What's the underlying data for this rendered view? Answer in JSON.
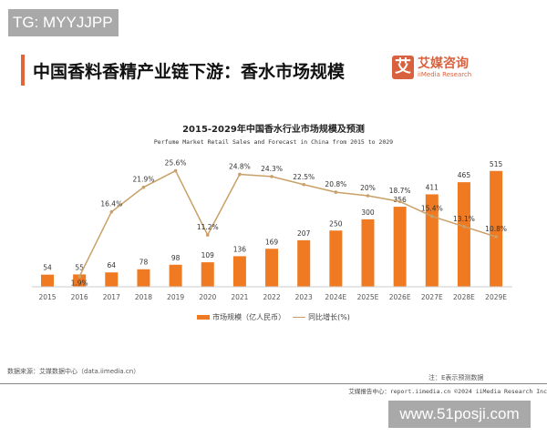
{
  "watermark_top": "TG: MYYJJPP",
  "watermark_bottom": "www.51posji.com",
  "header": {
    "title": "中国香料香精产业链下游：香水市场规模",
    "logo_mark": "艾",
    "logo_cn": "艾媒咨询",
    "logo_en": "iiMedia Research"
  },
  "source": "数据来源：艾媒数据中心（data.iimedia.cn）",
  "note": "注：E表示预测数据",
  "footer": "艾媒报告中心：report.iimedia.cn  ©2024  iiMedia Research  Inc",
  "colors": {
    "bar": "#f07a22",
    "line": "#c8a068",
    "accent": "#e2643a"
  },
  "chart_data": {
    "type": "bar+line",
    "title": "2015-2029年中国香水行业市场规模及预测",
    "subtitle": "Perfume Market Retail Sales and Forecast in China from 2015 to 2029",
    "categories": [
      "2015",
      "2016",
      "2017",
      "2018",
      "2019",
      "2020",
      "2021",
      "2022",
      "2023",
      "2024E",
      "2025E",
      "2026E",
      "2027E",
      "2028E",
      "2029E"
    ],
    "series": [
      {
        "name": "市场规模（亿人民币）",
        "type": "bar",
        "values": [
          54,
          55,
          64,
          78,
          98,
          109,
          136,
          169,
          207,
          250,
          300,
          356,
          411,
          465,
          515
        ]
      },
      {
        "name": "同比增长(%)",
        "type": "line",
        "values": [
          null,
          1.9,
          16.4,
          21.9,
          25.6,
          11.2,
          24.8,
          24.3,
          22.5,
          20.8,
          20.0,
          18.7,
          15.4,
          13.1,
          10.8
        ]
      }
    ],
    "legend": "bottom",
    "grid": false
  }
}
